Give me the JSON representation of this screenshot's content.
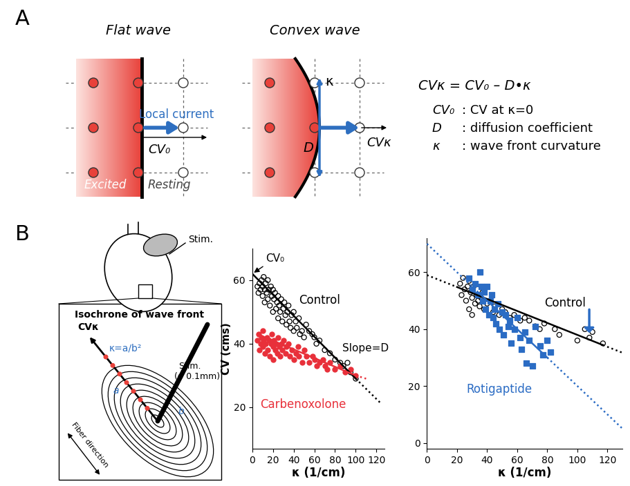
{
  "diagram": {
    "panel_A": {
      "label": "A",
      "flat_wave": {
        "title": "Flat wave",
        "current": "Local current",
        "velocity": "CV₀",
        "excited": "Excited",
        "resting": "Resting"
      },
      "convex_wave": {
        "title": "Convex wave",
        "curvature": "κ",
        "diffusion": "D",
        "velocity": "CVκ"
      },
      "equation": "CVκ = CV₀ – D•κ",
      "definitions": [
        [
          "CV₀",
          ": CV at κ=0"
        ],
        [
          "D",
          ": diffusion coefficient"
        ],
        [
          "κ",
          ": wave front curvature"
        ]
      ]
    },
    "panel_B": {
      "label": "B",
      "heart_stim": "Stim.",
      "inset": {
        "title": "Isochrone of wave front",
        "velocity": "CVκ",
        "curvature": "κ=a/b²",
        "a": "a",
        "b": "b",
        "stim_label": [
          "Stim.",
          "(φ 0.1mm)"
        ],
        "fiber": "Fiber direction"
      }
    }
  },
  "chart_data": [
    {
      "type": "scatter",
      "xlabel": "κ (1/cm)",
      "ylabel": "CV (cms)",
      "xlim": [
        0,
        128
      ],
      "ylim": [
        7,
        70
      ],
      "xticks": [
        0,
        20,
        40,
        60,
        80,
        100,
        120
      ],
      "yticks": [
        20,
        40,
        60
      ],
      "annotations": [
        "CV₀",
        "Slope=D"
      ],
      "series": [
        {
          "name": "Control",
          "color": "#000000",
          "marker": "open_circle",
          "x": [
            5,
            6,
            7,
            8,
            9,
            10,
            10,
            11,
            12,
            12,
            13,
            14,
            15,
            15,
            16,
            17,
            18,
            19,
            20,
            20,
            21,
            22,
            23,
            24,
            25,
            25,
            26,
            27,
            28,
            29,
            30,
            31,
            32,
            33,
            34,
            35,
            36,
            37,
            38,
            40,
            40,
            42,
            43,
            45,
            46,
            48,
            50,
            52,
            55,
            58,
            60,
            62,
            65,
            70,
            75,
            80,
            85,
            88,
            92,
            95,
            100
          ],
          "values": [
            58,
            56,
            59,
            57,
            60,
            55,
            58,
            61,
            57,
            53,
            59,
            56,
            60,
            54,
            57,
            52,
            58,
            55,
            57,
            50,
            54,
            56,
            51,
            53,
            55,
            48,
            52,
            50,
            54,
            47,
            51,
            53,
            49,
            46,
            50,
            52,
            47,
            45,
            49,
            50,
            44,
            47,
            45,
            48,
            43,
            44,
            42,
            46,
            44,
            43,
            42,
            40,
            41,
            38,
            37,
            35,
            34,
            33,
            34,
            31,
            29
          ]
        },
        {
          "name": "Carbenoxolone",
          "color": "#e8303a",
          "marker": "circle",
          "x": [
            5,
            6,
            7,
            8,
            9,
            10,
            10,
            11,
            12,
            13,
            14,
            15,
            16,
            17,
            18,
            19,
            20,
            20,
            21,
            22,
            23,
            24,
            25,
            26,
            27,
            28,
            29,
            30,
            32,
            33,
            35,
            36,
            38,
            40,
            42,
            44,
            45,
            48,
            50,
            52,
            55,
            58,
            60,
            62,
            65,
            68,
            70,
            72,
            75,
            80,
            85,
            90,
            95,
            100
          ],
          "values": [
            41,
            43,
            38,
            40,
            42,
            44,
            39,
            41,
            37,
            40,
            42,
            38,
            41,
            36,
            40,
            43,
            39,
            35,
            41,
            38,
            40,
            37,
            42,
            39,
            36,
            40,
            38,
            41,
            37,
            39,
            40,
            36,
            38,
            35,
            37,
            39,
            36,
            34,
            38,
            36,
            34,
            36,
            35,
            33,
            34,
            35,
            33,
            32,
            34,
            32,
            33,
            31,
            32,
            30
          ]
        },
        {
          "type": "line",
          "color": "#000000",
          "line_style": "solid",
          "x": [
            0,
            100
          ],
          "values": [
            62,
            29
          ]
        },
        {
          "type": "line",
          "color": "#000000",
          "line_style": "dotted",
          "x": [
            100,
            125
          ],
          "values": [
            29,
            21
          ]
        },
        {
          "type": "line",
          "color": "#e8303a",
          "line_style": "solid",
          "x": [
            5,
            100
          ],
          "values": [
            43,
            30
          ]
        },
        {
          "type": "line",
          "color": "#e8303a",
          "line_style": "dotted",
          "x": [
            100,
            110
          ],
          "values": [
            30,
            29
          ]
        }
      ]
    },
    {
      "type": "scatter",
      "xlabel": "κ (1/cm)",
      "xlim": [
        0,
        130
      ],
      "ylim": [
        -2,
        72
      ],
      "xticks": [
        0,
        20,
        40,
        60,
        80,
        100,
        120
      ],
      "yticks": [
        0,
        20,
        40,
        60
      ],
      "series": [
        {
          "name": "Control",
          "color": "#000000",
          "marker": "open_circle",
          "x": [
            22,
            23,
            24,
            25,
            26,
            27,
            28,
            28,
            29,
            30,
            30,
            31,
            32,
            33,
            34,
            35,
            36,
            37,
            38,
            40,
            42,
            44,
            45,
            48,
            50,
            52,
            55,
            58,
            62,
            65,
            68,
            72,
            75,
            78,
            85,
            88,
            100,
            105,
            108,
            110,
            117
          ],
          "values": [
            56,
            52,
            58,
            54,
            50,
            55,
            57,
            47,
            53,
            51,
            45,
            55,
            49,
            52,
            50,
            48,
            51,
            53,
            47,
            49,
            50,
            46,
            48,
            45,
            47,
            46,
            44,
            45,
            43,
            44,
            43,
            41,
            40,
            42,
            40,
            38,
            36,
            40,
            37,
            39,
            35
          ]
        },
        {
          "name": "Rotigaptide",
          "color": "#2b6cc4",
          "marker": "square",
          "x": [
            28,
            30,
            32,
            34,
            35,
            36,
            37,
            38,
            39,
            40,
            41,
            42,
            43,
            44,
            45,
            46,
            47,
            48,
            50,
            51,
            52,
            54,
            55,
            56,
            58,
            60,
            62,
            63,
            65,
            66,
            68,
            70,
            72,
            75,
            77,
            80,
            82
          ],
          "values": [
            58,
            54,
            56,
            52,
            60,
            55,
            50,
            53,
            47,
            55,
            45,
            50,
            52,
            44,
            47,
            42,
            49,
            40,
            46,
            38,
            45,
            41,
            43,
            35,
            40,
            44,
            37,
            33,
            39,
            28,
            36,
            27,
            41,
            34,
            31,
            36,
            32
          ]
        },
        {
          "type": "line",
          "color": "#000000",
          "line_style": "dotted",
          "x": [
            0,
            20
          ],
          "values": [
            59,
            54.8
          ]
        },
        {
          "type": "line",
          "color": "#000000",
          "line_style": "solid",
          "x": [
            20,
            117
          ],
          "values": [
            54.8,
            34.4
          ]
        },
        {
          "type": "line",
          "color": "#000000",
          "line_style": "dotted",
          "x": [
            117,
            130
          ],
          "values": [
            34.4,
            31.7
          ]
        },
        {
          "type": "line",
          "color": "#2b6cc4",
          "line_style": "dotted",
          "x": [
            0,
            35
          ],
          "values": [
            70,
            52.5
          ]
        },
        {
          "type": "line",
          "color": "#2b6cc4",
          "line_style": "solid",
          "x": [
            35,
            80
          ],
          "values": [
            52.5,
            30
          ]
        },
        {
          "type": "line",
          "color": "#2b6cc4",
          "line_style": "dotted",
          "x": [
            80,
            130
          ],
          "values": [
            30,
            5
          ]
        }
      ]
    }
  ]
}
